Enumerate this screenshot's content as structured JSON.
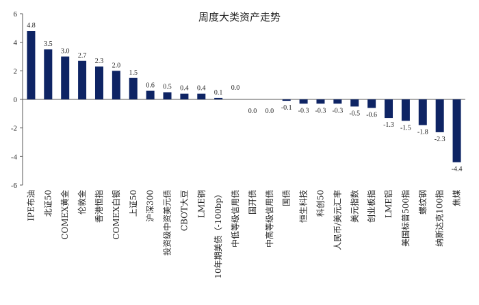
{
  "chart_data": {
    "type": "bar",
    "title": "周度大类资产走势",
    "xlabel": "",
    "ylabel": "",
    "ylim": [
      -6,
      6
    ],
    "yticks": [
      6,
      4,
      2,
      0,
      -2,
      -4,
      -6
    ],
    "grid": false,
    "legend": "none",
    "bar_color": "#0e2464",
    "categories": [
      "IPE布油",
      "北证50",
      "COMEX黄金",
      "伦敦金",
      "香港恒指",
      "COMEX白银",
      "上证50",
      "沪深300",
      "投资级中资美元债",
      "CBOT大豆",
      "LME铜",
      "10年期美债（-100bp）",
      "中低等级信用债",
      "国开债",
      "中高等级信用债",
      "国债",
      "恒生科技",
      "科创50",
      "人民币/美元汇率",
      "美元指数",
      "创业板指",
      "LME铝",
      "美国标普500指",
      "螺纹钢",
      "纳斯达克100指",
      "焦煤"
    ],
    "values": [
      4.8,
      3.5,
      3.0,
      2.7,
      2.3,
      2.0,
      1.5,
      0.6,
      0.5,
      0.4,
      0.4,
      0.1,
      0.0,
      0.0,
      0.0,
      -0.1,
      -0.3,
      -0.3,
      -0.3,
      -0.5,
      -0.6,
      -1.3,
      -1.5,
      -1.8,
      -2.3,
      -4.4
    ],
    "value_labels": [
      "4.8",
      "3.5",
      "3.0",
      "2.7",
      "2.3",
      "2.0",
      "1.5",
      "0.6",
      "0.5",
      "0.4",
      "0.4",
      "0.1",
      "0.0",
      "0.0",
      "0.0",
      "-0.1",
      "-0.3",
      "-0.3",
      "-0.3",
      "-0.5",
      "-0.6",
      "-1.3",
      "-1.5",
      "-1.8",
      "-2.3",
      "-4.4"
    ]
  }
}
